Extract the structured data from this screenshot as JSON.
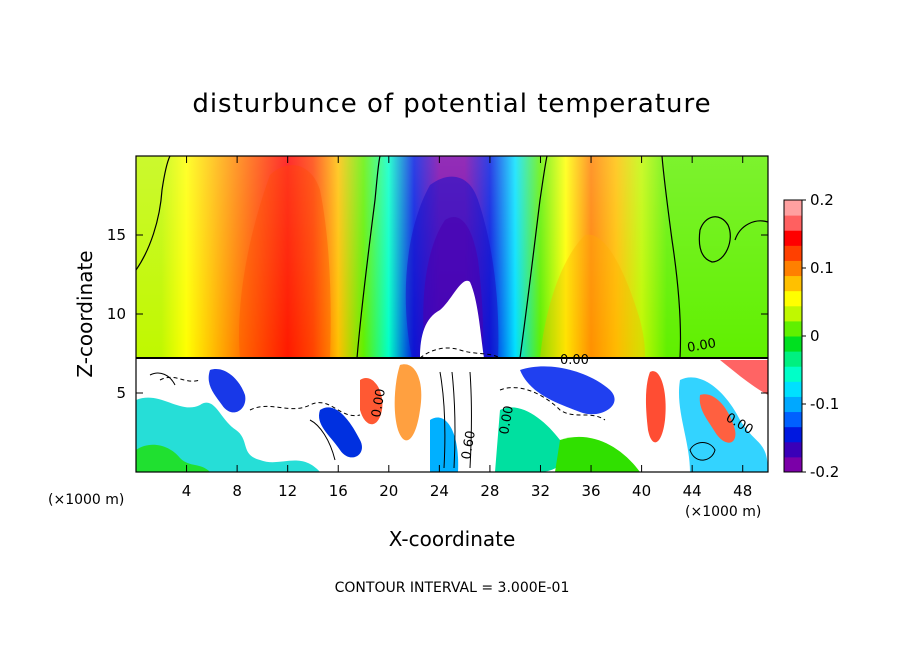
{
  "chart_data": {
    "type": "heatmap",
    "title": "disturbunce of potential temperature",
    "xlabel": "X-coordinate",
    "ylabel": "Z-coordinate",
    "x_unit_left": "(×1000 m)",
    "x_unit_right": "(×1000 m)",
    "footer": "CONTOUR INTERVAL = 3.000E-01",
    "xlim": [
      0,
      50
    ],
    "ylim": [
      0,
      20
    ],
    "x_ticks": [
      "4",
      "8",
      "12",
      "16",
      "20",
      "24",
      "28",
      "32",
      "36",
      "40",
      "44",
      "48"
    ],
    "y_ticks": [
      "5",
      "10",
      "15"
    ],
    "colorbar": {
      "range": [
        -0.2,
        0.2
      ],
      "ticks": [
        "0.2",
        "0.1",
        "0",
        "-0.1",
        "-0.2"
      ],
      "colors": [
        "#7b00a8",
        "#3a00b8",
        "#0018e0",
        "#0060ff",
        "#00a8ff",
        "#00e0ff",
        "#00ffc8",
        "#00f080",
        "#00e020",
        "#60f000",
        "#c0f800",
        "#ffff00",
        "#ffc000",
        "#ff8000",
        "#ff4000",
        "#ff0000",
        "#ff6060",
        "#ffa0a0"
      ]
    },
    "upper_layer_columns": [
      {
        "x": 0.0,
        "value": 0.03
      },
      {
        "x": 2.0,
        "value": 0.04
      },
      {
        "x": 4.0,
        "value": 0.05
      },
      {
        "x": 6.0,
        "value": 0.07
      },
      {
        "x": 8.0,
        "value": 0.09
      },
      {
        "x": 10.0,
        "value": 0.12
      },
      {
        "x": 12.0,
        "value": 0.14
      },
      {
        "x": 14.0,
        "value": 0.13
      },
      {
        "x": 16.0,
        "value": 0.07
      },
      {
        "x": 18.0,
        "value": 0.02
      },
      {
        "x": 20.0,
        "value": -0.05
      },
      {
        "x": 22.0,
        "value": -0.14
      },
      {
        "x": 24.0,
        "value": -0.19
      },
      {
        "x": 26.0,
        "value": -0.2
      },
      {
        "x": 28.0,
        "value": -0.15
      },
      {
        "x": 30.0,
        "value": -0.07
      },
      {
        "x": 32.0,
        "value": 0.01
      },
      {
        "x": 34.0,
        "value": 0.05
      },
      {
        "x": 36.0,
        "value": 0.09
      },
      {
        "x": 38.0,
        "value": 0.07
      },
      {
        "x": 40.0,
        "value": 0.03
      },
      {
        "x": 42.0,
        "value": 0.01
      },
      {
        "x": 44.0,
        "value": 0.0
      },
      {
        "x": 46.0,
        "value": 0.0
      },
      {
        "x": 48.0,
        "value": 0.01
      },
      {
        "x": 50.0,
        "value": 0.01
      }
    ],
    "contour_labels": [
      "0.00",
      "0.00",
      "0.00",
      "0.60",
      "0.00",
      "0.00"
    ]
  }
}
